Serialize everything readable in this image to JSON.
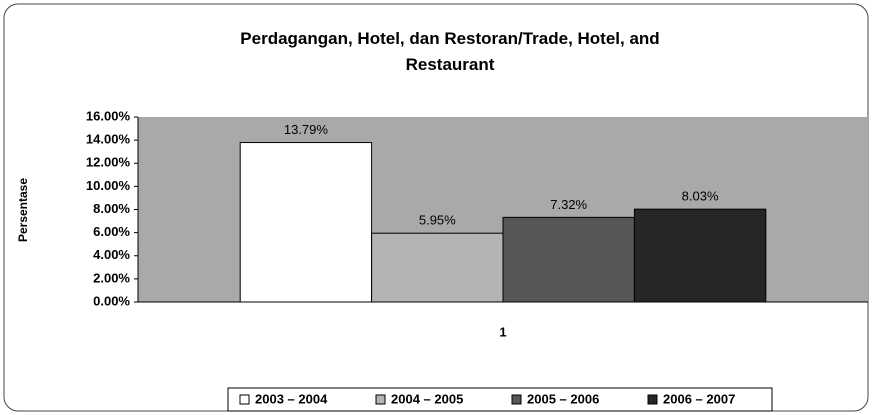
{
  "chart_data": {
    "type": "bar",
    "title": "Perdagangan, Hotel, dan Restoran/Trade, Hotel, and Restaurant",
    "y_label": "Persentase",
    "categories": [
      "1"
    ],
    "series": [
      {
        "name": "2003 – 2004",
        "color": "#ffffff",
        "values": [
          13.79
        ],
        "value_labels": [
          "13.79%"
        ]
      },
      {
        "name": "2004 – 2005",
        "color": "#b4b4b4",
        "values": [
          5.95
        ],
        "value_labels": [
          "5.95%"
        ]
      },
      {
        "name": "2005 – 2006",
        "color": "#575757",
        "values": [
          7.32
        ],
        "value_labels": [
          "7.32%"
        ]
      },
      {
        "name": "2006 – 2007",
        "color": "#262626",
        "values": [
          8.03
        ],
        "value_labels": [
          "8.03%"
        ]
      }
    ],
    "ylim": [
      0,
      16
    ],
    "yticks": [
      {
        "value": 0,
        "label": "0.00%"
      },
      {
        "value": 2,
        "label": "2.00%"
      },
      {
        "value": 4,
        "label": "4.00%"
      },
      {
        "value": 6,
        "label": "6.00%"
      },
      {
        "value": 8,
        "label": "8.00%"
      },
      {
        "value": 10,
        "label": "10.00%"
      },
      {
        "value": 12,
        "label": "12.00%"
      },
      {
        "value": 14,
        "label": "14.00%"
      },
      {
        "value": 16,
        "label": "16.00%"
      }
    ],
    "plot_background": "#a9a9a9",
    "legend": "bottom"
  }
}
